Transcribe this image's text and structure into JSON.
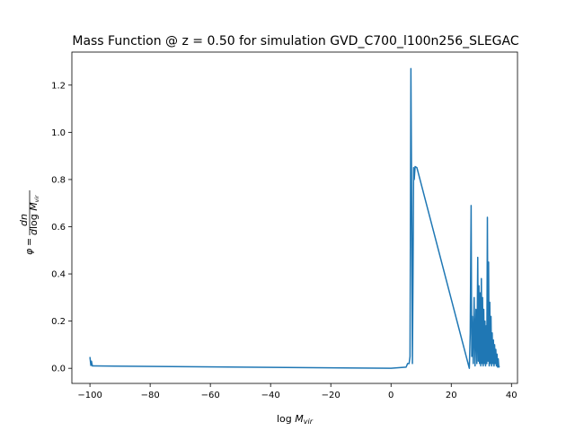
{
  "chart_data": {
    "type": "line",
    "title": "Mass Function @ $z = 0.50$ for simulation GVD_C700_l100n256_SLEGAC",
    "title_display": "Mass Function @ z = 0.50 for simulation GVD_C700_l100n256_SLEGAC",
    "xlabel": "log M_vir",
    "ylabel": "φ = dn / dlog M_vir",
    "xlim": [
      -106,
      42
    ],
    "ylim": [
      -0.064,
      1.34
    ],
    "xticks": [
      -100,
      -80,
      -60,
      -40,
      -20,
      0,
      20,
      40
    ],
    "yticks": [
      0.0,
      0.2,
      0.4,
      0.6,
      0.8,
      1.0,
      1.2
    ],
    "grid": false,
    "series_color": "#1f77b4",
    "series": [
      {
        "x": [
          -100.0,
          -99.7,
          -99.5,
          -99.2,
          -98.6,
          0.0,
          5.0,
          5.5,
          6.0,
          6.3,
          6.6,
          6.9,
          7.1,
          7.3,
          7.5,
          7.7,
          8.0,
          8.6,
          26.0,
          26.3,
          26.6,
          26.8,
          27.0,
          27.3,
          27.6,
          27.9,
          28.2,
          28.5,
          28.8,
          29.0,
          29.2,
          29.4,
          29.6,
          29.8,
          30.0,
          30.2,
          30.4,
          30.6,
          30.8,
          31.0,
          31.2,
          31.4,
          31.6,
          31.8,
          32.0,
          32.2,
          32.4,
          32.6,
          32.8,
          33.0,
          33.2,
          33.4,
          33.6,
          33.8,
          34.0,
          34.2,
          34.4,
          34.6,
          34.8,
          35.0,
          35.2,
          35.4,
          35.6,
          35.8,
          36.0
        ],
        "values": [
          0.048,
          0.012,
          0.03,
          0.01,
          0.01,
          0.0,
          0.005,
          0.02,
          0.02,
          0.05,
          1.27,
          0.6,
          0.02,
          0.4,
          0.85,
          0.8,
          0.855,
          0.85,
          0.0,
          0.15,
          0.69,
          0.05,
          0.22,
          0.02,
          0.3,
          0.01,
          0.25,
          0.02,
          0.47,
          0.03,
          0.35,
          0.02,
          0.32,
          0.01,
          0.38,
          0.02,
          0.3,
          0.01,
          0.25,
          0.02,
          0.2,
          0.01,
          0.18,
          0.02,
          0.64,
          0.03,
          0.45,
          0.01,
          0.28,
          0.02,
          0.22,
          0.01,
          0.15,
          0.02,
          0.12,
          0.01,
          0.1,
          0.02,
          0.08,
          0.01,
          0.06,
          0.005,
          0.04,
          0.005,
          0.01
        ]
      }
    ]
  }
}
